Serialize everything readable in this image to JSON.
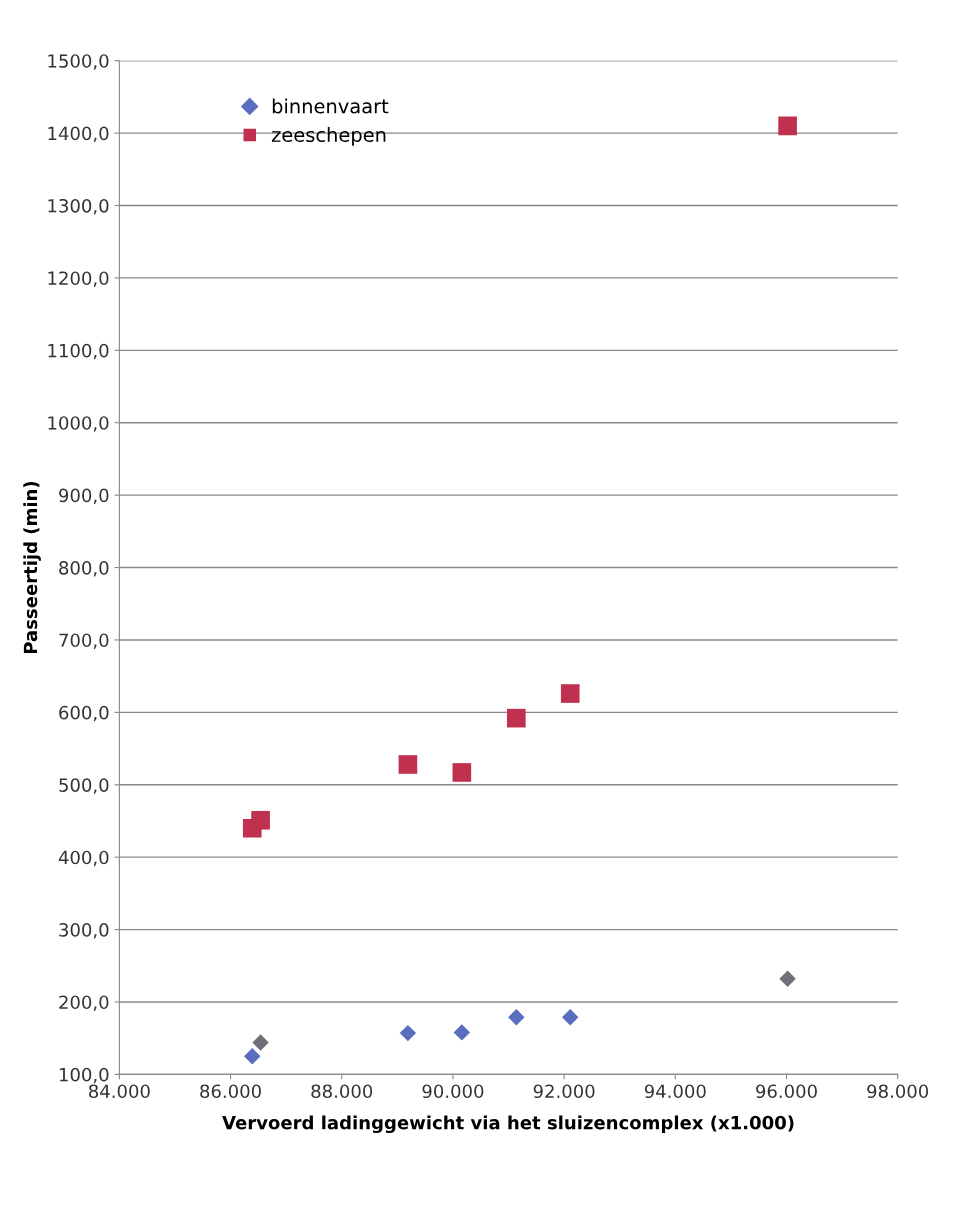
{
  "chart_data": {
    "type": "scatter",
    "xlabel": "Vervoerd ladinggewicht via het sluizencomplex (x1.000)",
    "ylabel": "Passeertijd (min)",
    "xlim": [
      84000,
      98000
    ],
    "xticks": [
      {
        "value": 84000,
        "label": "84.000"
      },
      {
        "value": 86000,
        "label": "86.000"
      },
      {
        "value": 88000,
        "label": "88.000"
      },
      {
        "value": 90000,
        "label": "90.000"
      },
      {
        "value": 92000,
        "label": "92.000"
      },
      {
        "value": 94000,
        "label": "94.000"
      },
      {
        "value": 96000,
        "label": "96.000"
      },
      {
        "value": 98000,
        "label": "98.000"
      }
    ],
    "ylim": [
      100,
      1500
    ],
    "yticks": [
      {
        "value": 100,
        "label": "100,0"
      },
      {
        "value": 200,
        "label": "200,0"
      },
      {
        "value": 300,
        "label": "300,0"
      },
      {
        "value": 400,
        "label": "400,0"
      },
      {
        "value": 500,
        "label": "500,0"
      },
      {
        "value": 600,
        "label": "600,0"
      },
      {
        "value": 700,
        "label": "700,0"
      },
      {
        "value": 800,
        "label": "800,0"
      },
      {
        "value": 900,
        "label": "900,0"
      },
      {
        "value": 1000,
        "label": "1000,0"
      },
      {
        "value": 1100,
        "label": "1100,0"
      },
      {
        "value": 1200,
        "label": "1200,0"
      },
      {
        "value": 1300,
        "label": "1300,0"
      },
      {
        "value": 1400,
        "label": "1400,0"
      },
      {
        "value": 1500,
        "label": "1500,0"
      }
    ],
    "grid": "y",
    "legend": "top left",
    "series": [
      {
        "name": "binnenvaart",
        "color": "#5a6ec0",
        "marker": "diamond",
        "x": [
          86390,
          86540,
          89190,
          90160,
          91140,
          92110,
          96020
        ],
        "values": [
          125,
          144,
          157,
          158,
          179,
          179,
          232
        ],
        "colors": [
          "#5a6ec0",
          "#707078",
          "#5a6ec0",
          "#5a6ec0",
          "#5a6ec0",
          "#5a6ec0",
          "#707078"
        ]
      },
      {
        "name": "zeeschepen",
        "color": "#c0304f",
        "marker": "square",
        "x": [
          86390,
          86540,
          89190,
          90160,
          91140,
          92110,
          96020
        ],
        "values": [
          440,
          451,
          528,
          517,
          592,
          626,
          1410
        ]
      }
    ]
  }
}
